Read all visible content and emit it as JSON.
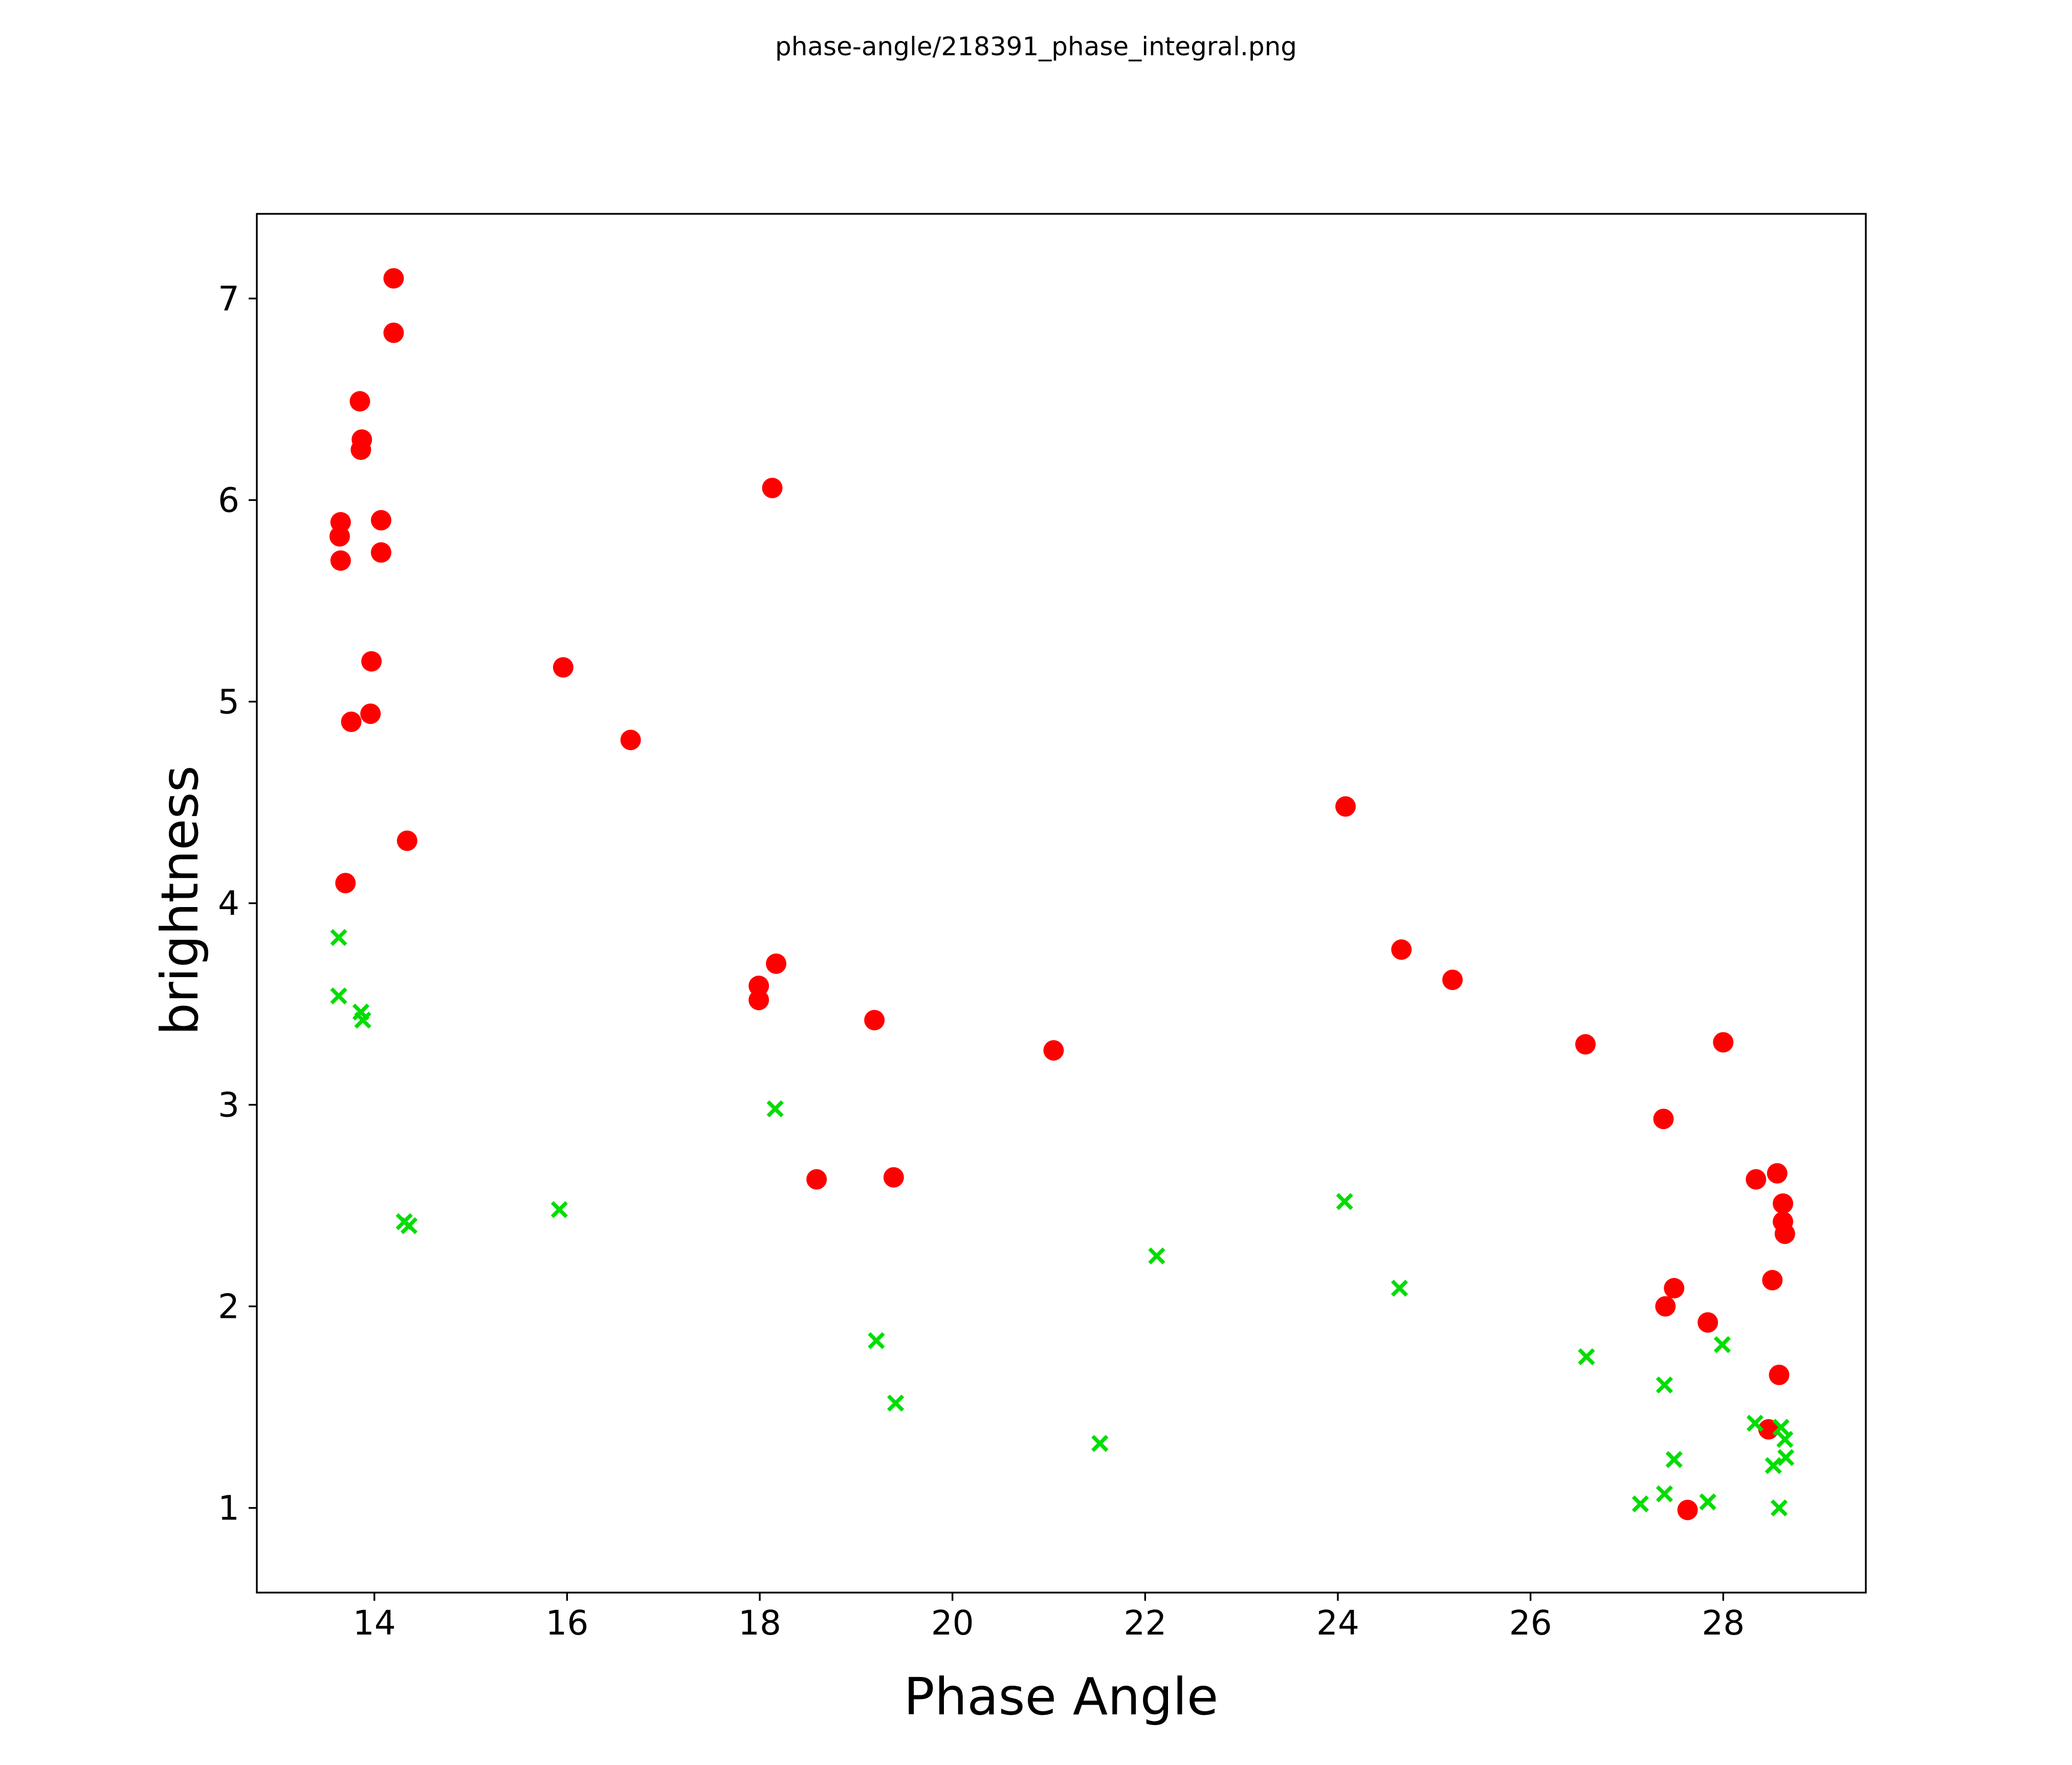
{
  "chart_data": {
    "type": "scatter",
    "title": "phase-angle/218391_phase_integral.png",
    "xlabel": "Phase Angle",
    "ylabel": "brightness",
    "xlim": [
      12.78,
      29.48
    ],
    "ylim": [
      0.58,
      7.42
    ],
    "xticks": [
      14,
      16,
      18,
      20,
      22,
      24,
      26,
      28
    ],
    "yticks": [
      1,
      2,
      3,
      4,
      5,
      6,
      7
    ],
    "grid": false,
    "legend_position": "none",
    "axes_color": "#000000",
    "background_color": "#ffffff",
    "series": [
      {
        "name": "red-circles",
        "marker": "circle",
        "color": "#ff0000",
        "points": [
          [
            14.2,
            7.1
          ],
          [
            14.2,
            6.83
          ],
          [
            13.85,
            6.49
          ],
          [
            13.87,
            6.3
          ],
          [
            13.86,
            6.25
          ],
          [
            13.65,
            5.89
          ],
          [
            13.64,
            5.82
          ],
          [
            13.65,
            5.7
          ],
          [
            14.07,
            5.9
          ],
          [
            14.07,
            5.74
          ],
          [
            13.97,
            5.2
          ],
          [
            13.96,
            4.94
          ],
          [
            13.76,
            4.9
          ],
          [
            14.34,
            4.31
          ],
          [
            13.7,
            4.1
          ],
          [
            15.96,
            5.17
          ],
          [
            16.66,
            4.81
          ],
          [
            18.13,
            6.06
          ],
          [
            18.17,
            3.7
          ],
          [
            17.99,
            3.59
          ],
          [
            17.99,
            3.52
          ],
          [
            19.19,
            3.42
          ],
          [
            18.59,
            2.63
          ],
          [
            19.39,
            2.64
          ],
          [
            21.05,
            3.27
          ],
          [
            24.08,
            4.48
          ],
          [
            24.66,
            3.77
          ],
          [
            25.19,
            3.62
          ],
          [
            26.57,
            3.3
          ],
          [
            28.0,
            3.31
          ],
          [
            27.38,
            2.93
          ],
          [
            28.34,
            2.63
          ],
          [
            28.56,
            2.66
          ],
          [
            28.62,
            2.51
          ],
          [
            28.62,
            2.42
          ],
          [
            28.64,
            2.36
          ],
          [
            28.51,
            2.13
          ],
          [
            27.49,
            2.09
          ],
          [
            27.4,
            2.0
          ],
          [
            27.84,
            1.92
          ],
          [
            28.58,
            1.66
          ],
          [
            28.47,
            1.39
          ],
          [
            27.63,
            0.99
          ]
        ]
      },
      {
        "name": "green-crosses",
        "marker": "x",
        "color": "#00dd00",
        "points": [
          [
            13.63,
            3.83
          ],
          [
            13.63,
            3.54
          ],
          [
            13.86,
            3.46
          ],
          [
            13.88,
            3.42
          ],
          [
            14.31,
            2.42
          ],
          [
            14.36,
            2.4
          ],
          [
            15.92,
            2.48
          ],
          [
            18.16,
            2.98
          ],
          [
            19.21,
            1.83
          ],
          [
            19.41,
            1.52
          ],
          [
            21.53,
            1.32
          ],
          [
            22.12,
            2.25
          ],
          [
            24.07,
            2.52
          ],
          [
            24.64,
            2.09
          ],
          [
            26.58,
            1.75
          ],
          [
            27.99,
            1.81
          ],
          [
            27.39,
            1.61
          ],
          [
            28.33,
            1.42
          ],
          [
            28.6,
            1.4
          ],
          [
            28.64,
            1.34
          ],
          [
            28.65,
            1.25
          ],
          [
            28.52,
            1.21
          ],
          [
            27.49,
            1.24
          ],
          [
            27.39,
            1.07
          ],
          [
            27.84,
            1.03
          ],
          [
            27.14,
            1.02
          ],
          [
            28.58,
            1.0
          ]
        ]
      }
    ]
  }
}
